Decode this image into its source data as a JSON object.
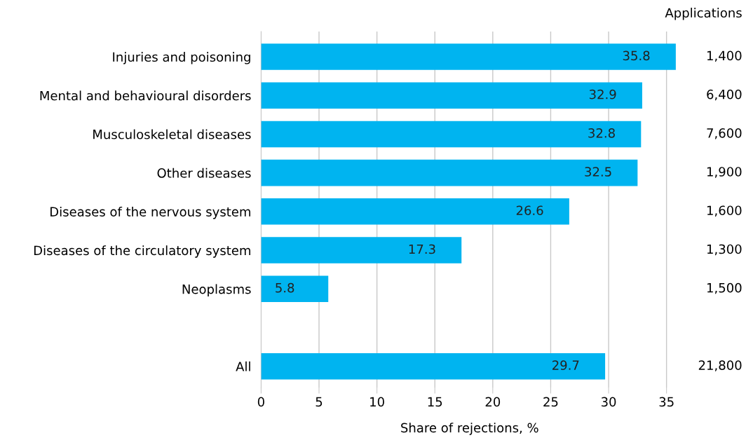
{
  "chart_data": {
    "type": "bar",
    "orientation": "horizontal",
    "xlabel": "Share of rejections, %",
    "categories": [
      "Injuries and poisoning",
      "Mental and behavioural disorders",
      "Musculoskeletal diseases",
      "Other diseases",
      "Diseases of the nervous system",
      "Diseases of the circulatory system",
      "Neoplasms",
      null,
      "All"
    ],
    "values": [
      35.8,
      32.9,
      32.8,
      32.5,
      26.6,
      17.3,
      5.8,
      null,
      29.7
    ],
    "color": "#00b4f0",
    "data_labels": true,
    "grid": "x",
    "xlim": [
      0,
      36
    ],
    "xticks": [
      0,
      5,
      10,
      15,
      20,
      25,
      30,
      35
    ],
    "annotations": [
      "Applications",
      "1,400",
      "6,400",
      "7,600",
      "1,900",
      "1,600",
      "1,300",
      "1,500",
      "21,800"
    ]
  }
}
